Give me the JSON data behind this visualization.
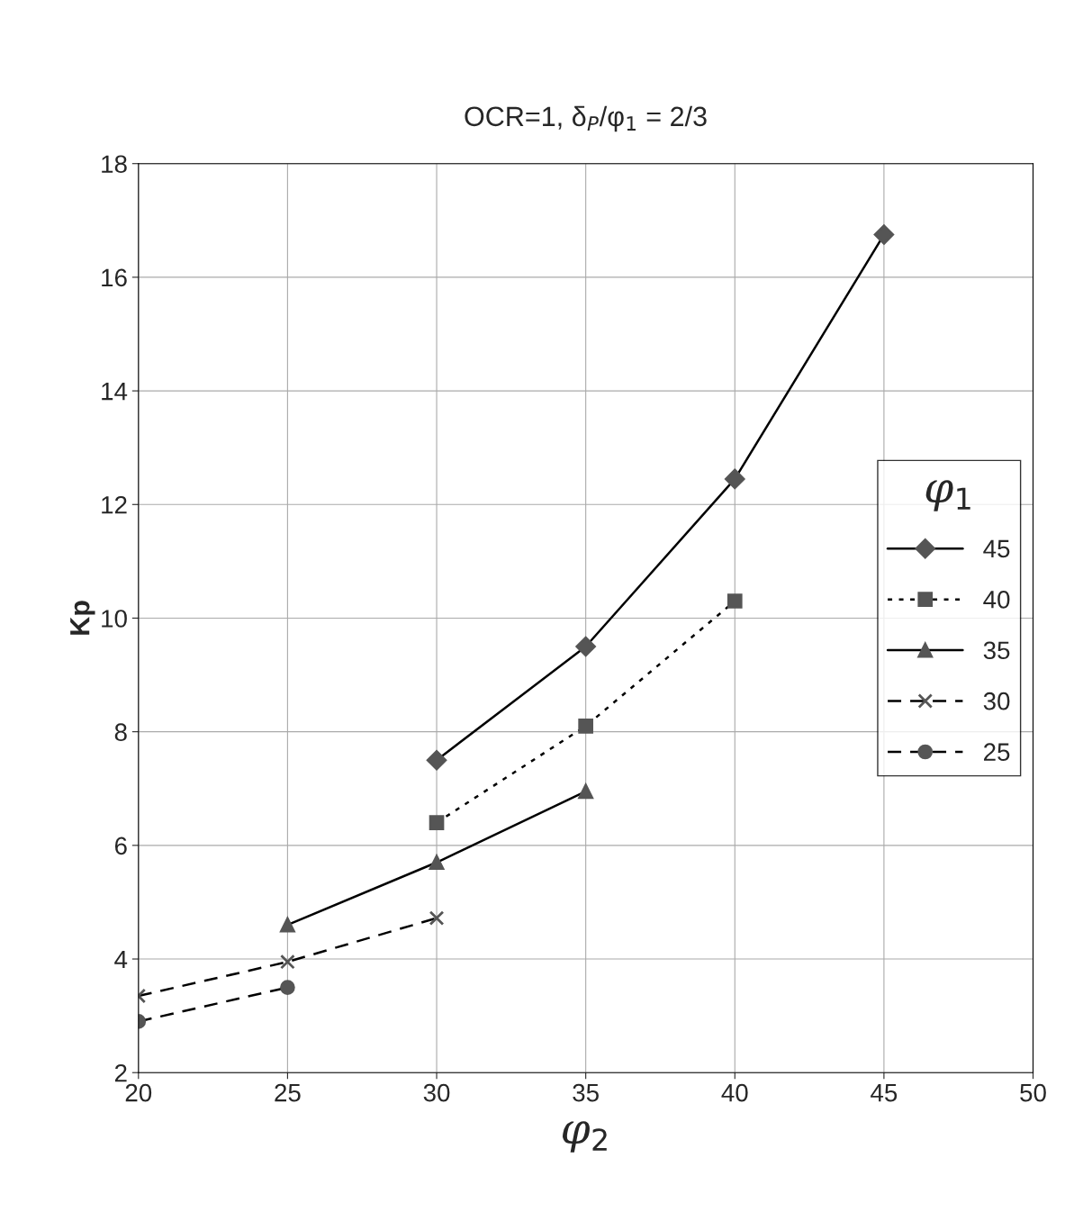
{
  "chart_data": {
    "type": "line",
    "title": "OCR=1, δ$_{P}$/φ$_{1}$ = 2/3",
    "xlabel": "φ$_{2}$",
    "ylabel": "Kp",
    "legend_title": "φ$_{1}$",
    "xlim": [
      20,
      50
    ],
    "xticks": [
      20,
      25,
      30,
      35,
      40,
      45,
      50
    ],
    "ylim": [
      2,
      18
    ],
    "yticks": [
      2,
      4,
      6,
      8,
      10,
      12,
      14,
      16,
      18
    ],
    "grid": true,
    "legend": "center right",
    "series": [
      {
        "name": "45",
        "color": "#555555",
        "marker": "diamond",
        "line_style": "solid",
        "x": [
          30,
          35,
          40,
          45
        ],
        "values": [
          7.5,
          9.5,
          12.45,
          16.75
        ]
      },
      {
        "name": "40",
        "color": "#555555",
        "marker": "square",
        "line_style": "dotted",
        "x": [
          30,
          35,
          40
        ],
        "values": [
          6.4,
          8.1,
          10.3
        ]
      },
      {
        "name": "35",
        "color": "#555555",
        "marker": "triangle",
        "line_style": "solid",
        "x": [
          25,
          30,
          35
        ],
        "values": [
          4.6,
          5.7,
          6.95
        ]
      },
      {
        "name": "30",
        "color": "#555555",
        "marker": "cross",
        "line_style": "dashed",
        "x": [
          20,
          25,
          30
        ],
        "values": [
          3.35,
          3.95,
          4.72
        ]
      },
      {
        "name": "25",
        "color": "#555555",
        "marker": "circle",
        "line_style": "dashed",
        "x": [
          20,
          25
        ],
        "values": [
          2.9,
          3.5
        ]
      }
    ]
  }
}
